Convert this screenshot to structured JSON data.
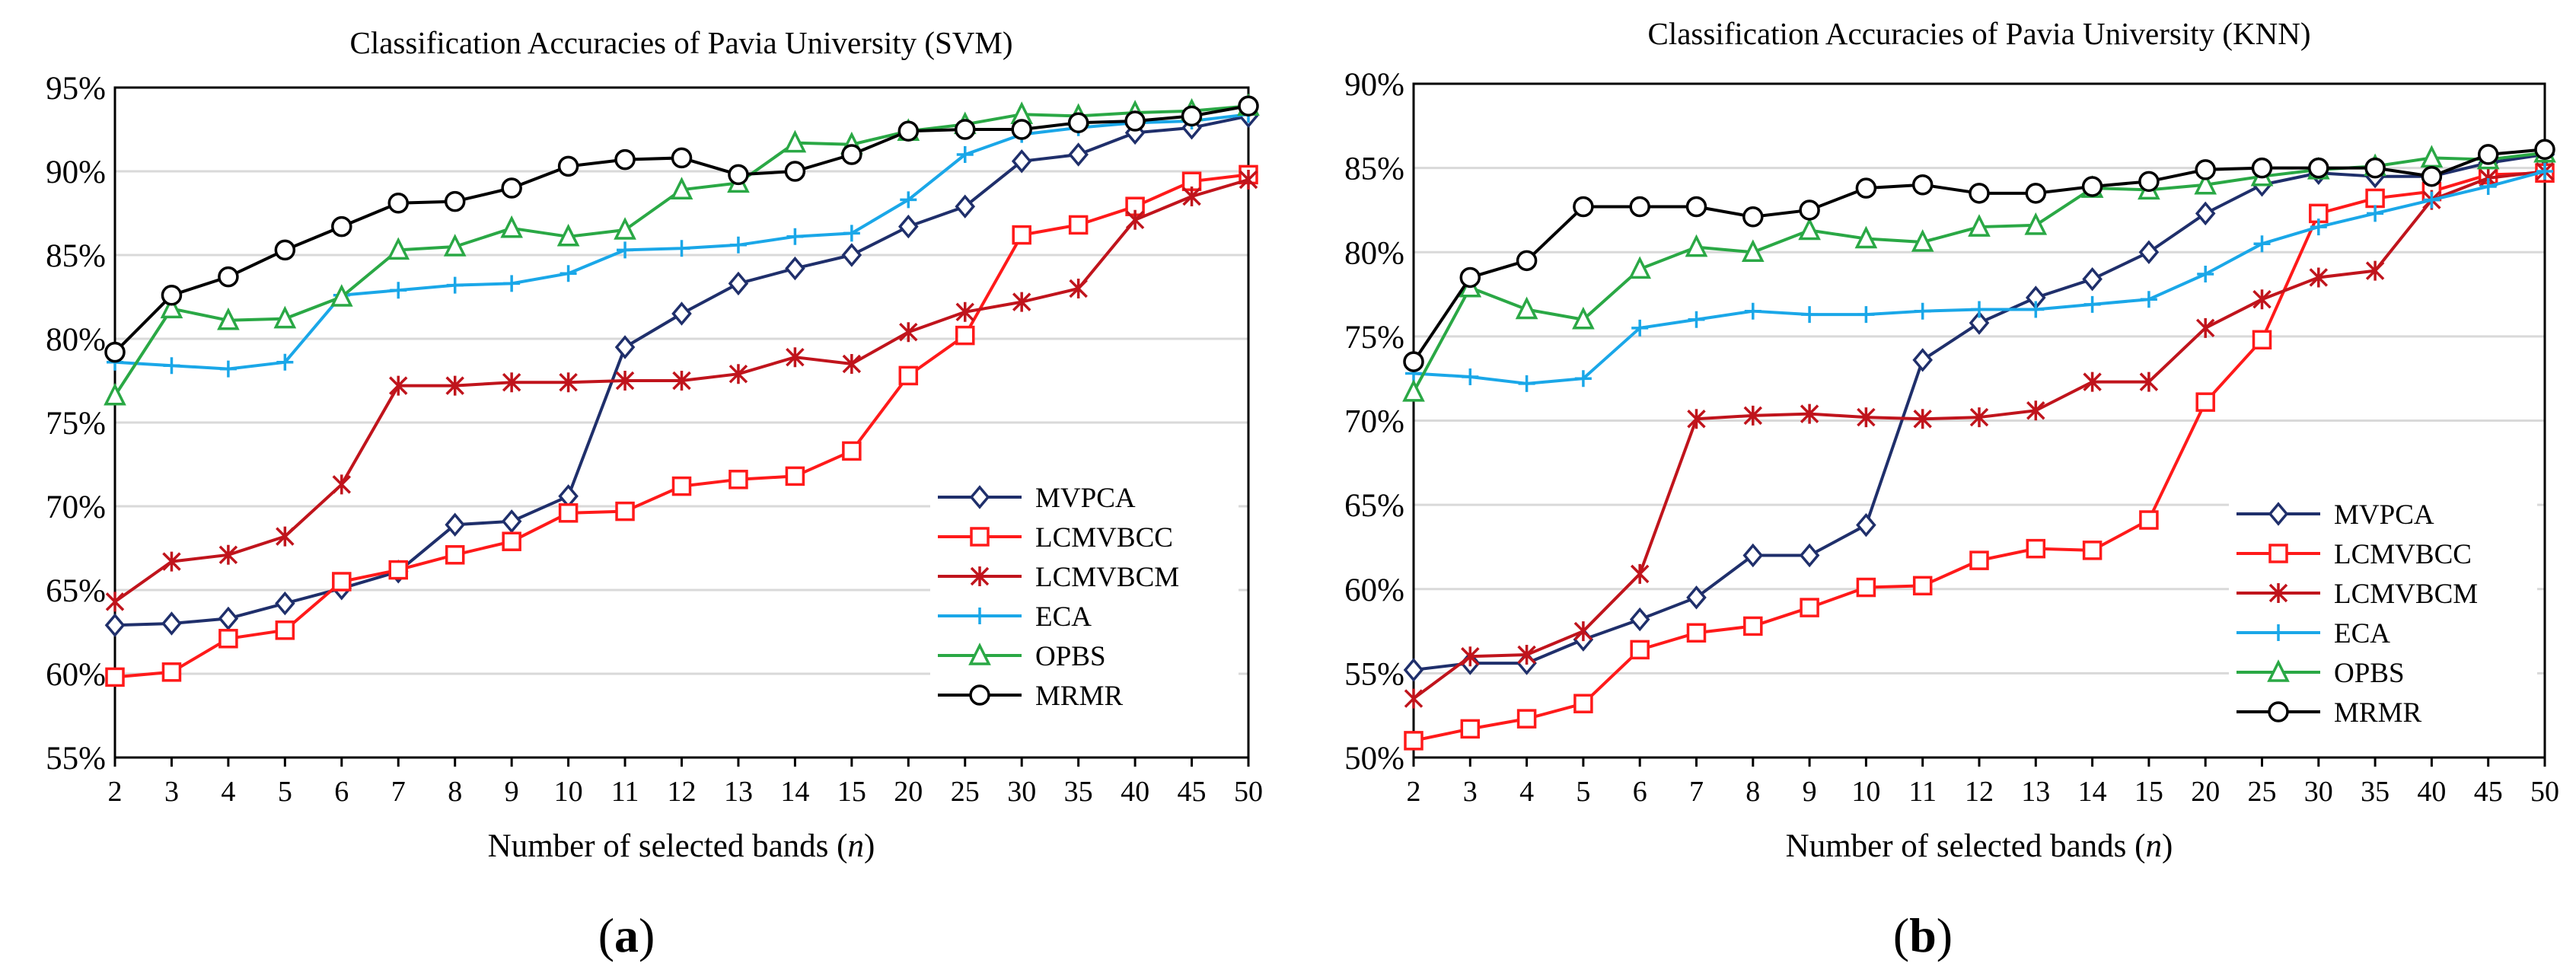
{
  "chart_data": [
    {
      "type": "line",
      "title": "Classification Accuracies of  Pavia University (SVM)",
      "xlabel": "Number of selected bands (",
      "xlabel_var": "n",
      "xlabel_end": ")",
      "ylabel": "",
      "panel_label": "a",
      "categories": [
        "2",
        "3",
        "4",
        "5",
        "6",
        "7",
        "8",
        "9",
        "10",
        "11",
        "12",
        "13",
        "14",
        "15",
        "20",
        "25",
        "30",
        "35",
        "40",
        "45",
        "50"
      ],
      "ylim": [
        55,
        95
      ],
      "yticks": [
        55,
        60,
        65,
        70,
        75,
        80,
        85,
        90,
        95
      ],
      "ytick_labels": [
        "55%",
        "60%",
        "65%",
        "70%",
        "75%",
        "80%",
        "85%",
        "90%",
        "95%"
      ],
      "legend_position": "lower-right",
      "series": [
        {
          "name": "MVPCA",
          "color": "#1f2f6b",
          "marker": "diamond",
          "values": [
            62.9,
            63.0,
            63.3,
            64.2,
            65.1,
            66.1,
            68.9,
            69.1,
            70.6,
            79.5,
            81.5,
            83.3,
            84.2,
            85.0,
            86.7,
            87.9,
            90.6,
            91.0,
            92.3,
            92.6,
            93.3
          ]
        },
        {
          "name": "LCMVBCC",
          "color": "#ff1a1a",
          "marker": "square",
          "values": [
            59.8,
            60.1,
            62.1,
            62.6,
            65.5,
            66.2,
            67.1,
            67.9,
            69.6,
            69.7,
            71.2,
            71.6,
            71.8,
            73.3,
            77.8,
            80.2,
            86.2,
            86.8,
            87.9,
            89.4,
            89.8
          ]
        },
        {
          "name": "LCMVBCM",
          "color": "#c0141c",
          "marker": "star",
          "values": [
            64.3,
            66.7,
            67.1,
            68.2,
            71.3,
            77.2,
            77.2,
            77.4,
            77.4,
            77.5,
            77.5,
            77.9,
            78.9,
            78.5,
            80.4,
            81.6,
            82.2,
            83.0,
            87.1,
            88.5,
            89.5
          ]
        },
        {
          "name": "ECA",
          "color": "#1aa7e8",
          "marker": "plus",
          "values": [
            78.6,
            78.4,
            78.2,
            78.6,
            82.6,
            82.9,
            83.2,
            83.3,
            83.9,
            85.3,
            85.4,
            85.6,
            86.1,
            86.3,
            88.3,
            91.0,
            92.2,
            92.6,
            92.9,
            93.0,
            93.4
          ]
        },
        {
          "name": "OPBS",
          "color": "#2aa845",
          "marker": "triangle",
          "values": [
            76.6,
            81.8,
            81.1,
            81.2,
            82.5,
            85.3,
            85.5,
            86.6,
            86.1,
            86.5,
            88.9,
            89.3,
            91.7,
            91.6,
            92.4,
            92.8,
            93.4,
            93.3,
            93.5,
            93.6,
            93.9
          ]
        },
        {
          "name": "MRMR",
          "color": "#000000",
          "marker": "circle",
          "values": [
            79.2,
            82.6,
            83.7,
            85.3,
            86.7,
            88.1,
            88.2,
            89.0,
            90.3,
            90.7,
            90.8,
            89.8,
            90.0,
            91.0,
            92.4,
            92.5,
            92.5,
            92.9,
            93.0,
            93.3,
            93.9
          ]
        }
      ]
    },
    {
      "type": "line",
      "title": "Classification Accuracies of  Pavia University (KNN)",
      "xlabel": "Number of selected bands (",
      "xlabel_var": "n",
      "xlabel_end": ")",
      "ylabel": "",
      "panel_label": "b",
      "categories": [
        "2",
        "3",
        "4",
        "5",
        "6",
        "7",
        "8",
        "9",
        "10",
        "11",
        "12",
        "13",
        "14",
        "15",
        "20",
        "25",
        "30",
        "35",
        "40",
        "45",
        "50"
      ],
      "ylim": [
        50,
        90
      ],
      "yticks": [
        50,
        55,
        60,
        65,
        70,
        75,
        80,
        85,
        90
      ],
      "ytick_labels": [
        "50%",
        "55%",
        "60%",
        "65%",
        "70%",
        "75%",
        "80%",
        "85%",
        "90%"
      ],
      "legend_position": "lower-right",
      "series": [
        {
          "name": "MVPCA",
          "color": "#1f2f6b",
          "marker": "diamond",
          "values": [
            55.2,
            55.6,
            55.6,
            57.0,
            58.2,
            59.5,
            62.0,
            62.0,
            63.8,
            73.6,
            75.8,
            77.3,
            78.4,
            80.0,
            82.3,
            84.0,
            84.7,
            84.5,
            84.5,
            85.3,
            85.8
          ]
        },
        {
          "name": "LCMVBCC",
          "color": "#ff1a1a",
          "marker": "square",
          "values": [
            51.0,
            51.7,
            52.3,
            53.2,
            56.4,
            57.4,
            57.8,
            58.9,
            60.1,
            60.2,
            61.7,
            62.4,
            62.3,
            64.1,
            71.1,
            74.8,
            82.3,
            83.2,
            83.6,
            84.6,
            84.7
          ]
        },
        {
          "name": "LCMVBCM",
          "color": "#c0141c",
          "marker": "star",
          "values": [
            53.5,
            56.0,
            56.1,
            57.5,
            60.9,
            70.1,
            70.3,
            70.4,
            70.2,
            70.1,
            70.2,
            70.6,
            72.3,
            72.3,
            75.5,
            77.2,
            78.5,
            78.9,
            83.1,
            84.4,
            84.8
          ]
        },
        {
          "name": "ECA",
          "color": "#1aa7e8",
          "marker": "plus",
          "values": [
            72.8,
            72.6,
            72.2,
            72.5,
            75.5,
            76.0,
            76.5,
            76.3,
            76.3,
            76.5,
            76.6,
            76.6,
            76.9,
            77.2,
            78.7,
            80.5,
            81.5,
            82.3,
            83.1,
            83.9,
            84.8
          ]
        },
        {
          "name": "OPBS",
          "color": "#2aa845",
          "marker": "triangle",
          "values": [
            71.7,
            77.9,
            76.6,
            76.0,
            79.0,
            80.3,
            80.0,
            81.3,
            80.8,
            80.6,
            81.5,
            81.6,
            83.8,
            83.7,
            84.0,
            84.5,
            84.9,
            85.1,
            85.6,
            85.5,
            85.9
          ]
        },
        {
          "name": "MRMR",
          "color": "#000000",
          "marker": "circle",
          "values": [
            73.5,
            78.5,
            79.5,
            82.7,
            82.7,
            82.7,
            82.1,
            82.5,
            83.8,
            84.0,
            83.5,
            83.5,
            83.9,
            84.2,
            84.9,
            85.0,
            85.0,
            85.0,
            84.5,
            85.8,
            86.1
          ]
        }
      ]
    }
  ]
}
